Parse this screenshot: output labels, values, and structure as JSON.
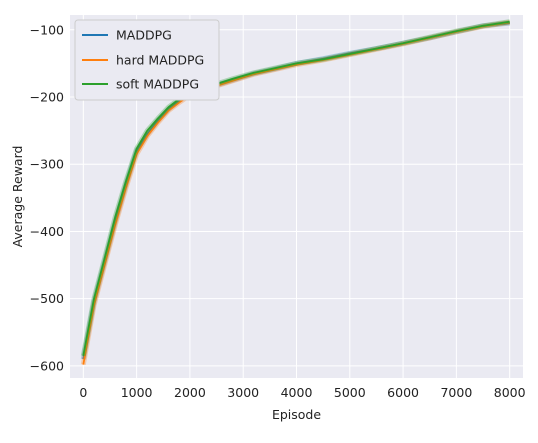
{
  "chart_data": {
    "type": "line",
    "title": "",
    "xlabel": "Episode",
    "ylabel": "Average Reward",
    "xlim": [
      -250,
      8250
    ],
    "ylim": [
      -618,
      -78
    ],
    "xticks": [
      0,
      1000,
      2000,
      3000,
      4000,
      5000,
      6000,
      7000,
      8000
    ],
    "xtick_labels": [
      "0",
      "1000",
      "2000",
      "3000",
      "4000",
      "5000",
      "6000",
      "7000",
      "8000"
    ],
    "yticks": [
      -600,
      -500,
      -400,
      -300,
      -200,
      -100
    ],
    "ytick_labels": [
      "−600",
      "−500",
      "−400",
      "−300",
      "−200",
      "−100"
    ],
    "grid": true,
    "legend_position": "top-left",
    "x": [
      0,
      200,
      400,
      600,
      800,
      1000,
      1200,
      1400,
      1600,
      1800,
      2000,
      2400,
      2800,
      3200,
      3600,
      4000,
      4500,
      5000,
      5500,
      6000,
      6500,
      7000,
      7500,
      8000
    ],
    "series": [
      {
        "name": "MADDPG",
        "color": "#1f77b4",
        "values": [
          -590,
          -505,
          -445,
          -385,
          -330,
          -280,
          -255,
          -235,
          -218,
          -205,
          -195,
          -185,
          -175,
          -165,
          -158,
          -150,
          -143,
          -135,
          -128,
          -120,
          -112,
          -103,
          -94,
          -90
        ]
      },
      {
        "name": "hard MADDPG",
        "color": "#ff7f0e",
        "values": [
          -598,
          -510,
          -450,
          -390,
          -335,
          -285,
          -258,
          -238,
          -220,
          -208,
          -197,
          -186,
          -176,
          -166,
          -159,
          -152,
          -145,
          -137,
          -129,
          -121,
          -112,
          -103,
          -95,
          -89
        ]
      },
      {
        "name": "soft MADDPG",
        "color": "#2ca02c",
        "values": [
          -585,
          -500,
          -440,
          -378,
          -325,
          -277,
          -250,
          -232,
          -215,
          -203,
          -193,
          -183,
          -173,
          -164,
          -157,
          -150,
          -144,
          -136,
          -128,
          -120,
          -111,
          -102,
          -94,
          -88
        ]
      }
    ]
  }
}
